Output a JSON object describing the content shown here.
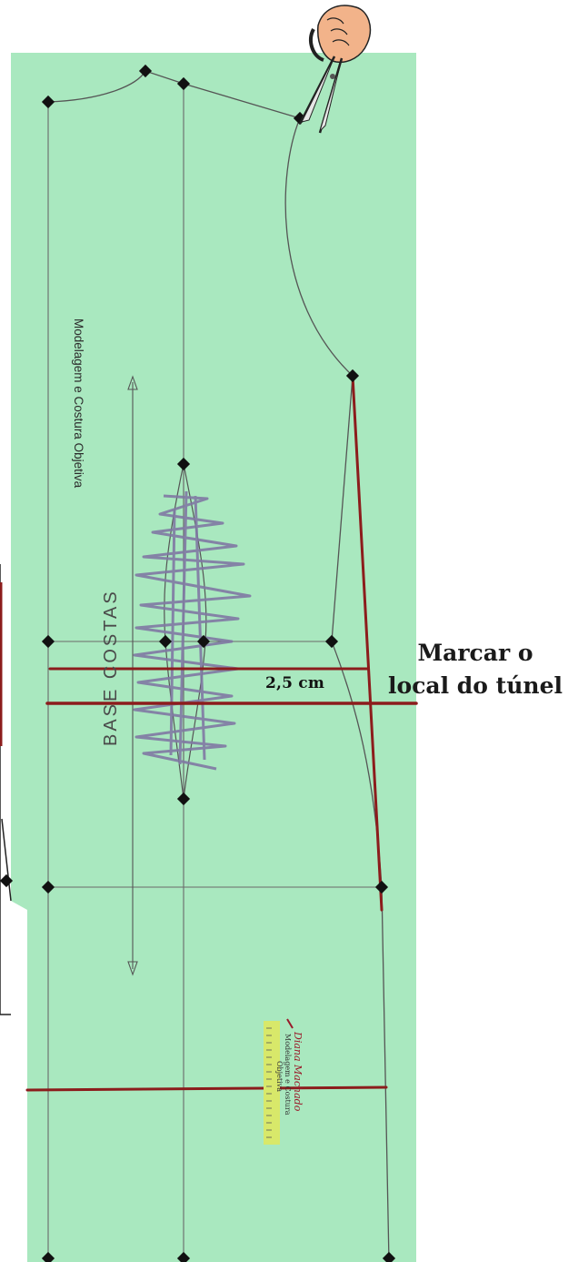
{
  "pattern": {
    "watermark_text": "Modelagem e Costura Objetiva",
    "piece_label": "BASE COSTAS"
  },
  "annotation": {
    "callout_line1": "Marcar o",
    "callout_line2": "local do túnel",
    "measurement": "2,5 cm"
  },
  "logo": {
    "signature": "Diana Machado",
    "line1": "Modelagem e Costura",
    "line2": "Objetiva"
  },
  "colors": {
    "paper": "#a9e8bf",
    "outline": "#555555",
    "marker_red": "#8c1c1c",
    "scribble": "#7f78a3"
  },
  "icons": {
    "scissors": "scissors-hand-icon"
  }
}
